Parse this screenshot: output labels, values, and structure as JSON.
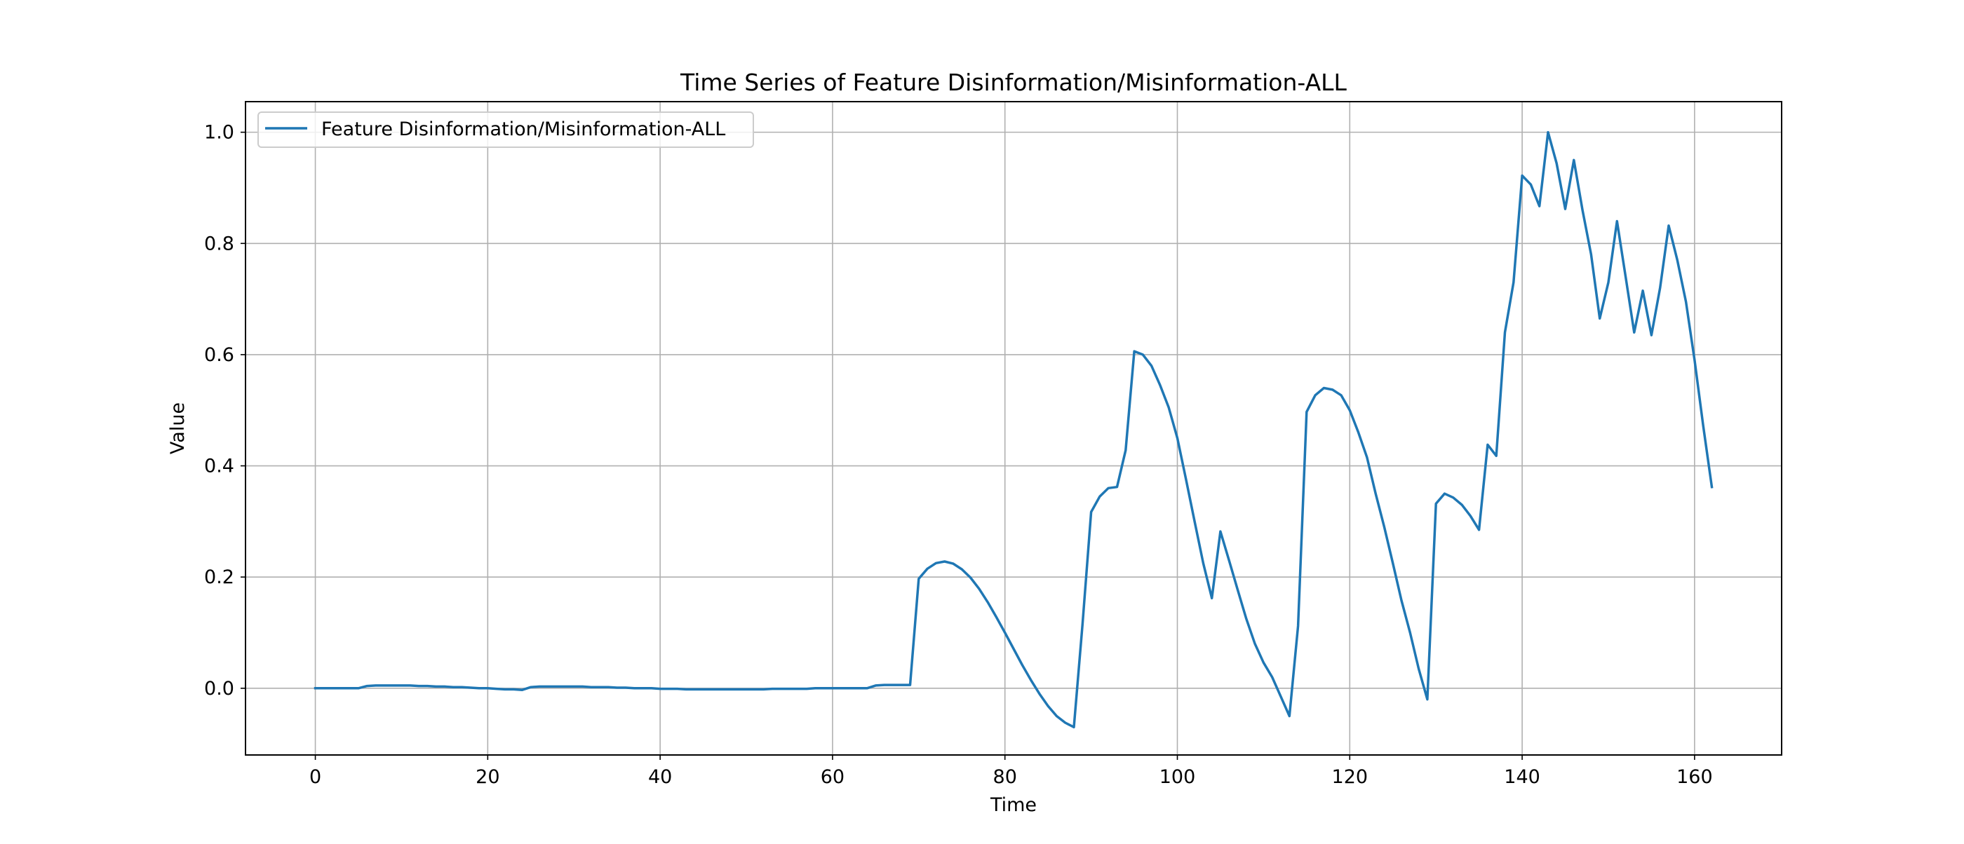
{
  "chart_data": {
    "type": "line",
    "title": "Time Series of Feature Disinformation/Misinformation-ALL",
    "xlabel": "Time",
    "ylabel": "Value",
    "xlim": [
      -8.1,
      170.1
    ],
    "ylim": [
      -0.12,
      1.055
    ],
    "x_ticks": [
      0,
      20,
      40,
      60,
      80,
      100,
      120,
      140,
      160
    ],
    "y_ticks": [
      0.0,
      0.2,
      0.4,
      0.6,
      0.8,
      1.0
    ],
    "x_tick_labels": [
      "0",
      "20",
      "40",
      "60",
      "80",
      "100",
      "120",
      "140",
      "160"
    ],
    "y_tick_labels": [
      "0.0",
      "0.2",
      "0.4",
      "0.6",
      "0.8",
      "1.0"
    ],
    "grid": true,
    "legend_position": "upper-left",
    "series": [
      {
        "name": "Feature Disinformation/Misinformation-ALL",
        "color": "#1f77b4",
        "x": [
          0,
          1,
          2,
          3,
          4,
          5,
          6,
          7,
          8,
          9,
          10,
          11,
          12,
          13,
          14,
          15,
          16,
          17,
          18,
          19,
          20,
          21,
          22,
          23,
          24,
          25,
          26,
          27,
          28,
          29,
          30,
          31,
          32,
          33,
          34,
          35,
          36,
          37,
          38,
          39,
          40,
          41,
          42,
          43,
          44,
          45,
          46,
          47,
          48,
          49,
          50,
          51,
          52,
          53,
          54,
          55,
          56,
          57,
          58,
          59,
          60,
          61,
          62,
          63,
          64,
          65,
          66,
          67,
          68,
          69,
          70,
          71,
          72,
          73,
          74,
          75,
          76,
          77,
          78,
          79,
          80,
          81,
          82,
          83,
          84,
          85,
          86,
          87,
          88,
          89,
          90,
          91,
          92,
          93,
          94,
          95,
          96,
          97,
          98,
          99,
          100,
          101,
          102,
          103,
          104,
          105,
          106,
          107,
          108,
          109,
          110,
          111,
          112,
          113,
          114,
          115,
          116,
          117,
          118,
          119,
          120,
          121,
          122,
          123,
          124,
          125,
          126,
          127,
          128,
          129,
          130,
          131,
          132,
          133,
          134,
          135,
          136,
          137,
          138,
          139,
          140,
          141,
          142,
          143,
          144,
          145,
          146,
          147,
          148,
          149,
          150,
          151,
          152,
          153,
          154,
          155,
          156,
          157,
          158,
          159,
          160,
          161,
          162
        ],
        "values": [
          0.0,
          0.0,
          0.0,
          0.0,
          0.0,
          0.0,
          0.004,
          0.005,
          0.005,
          0.005,
          0.005,
          0.005,
          0.004,
          0.004,
          0.003,
          0.003,
          0.002,
          0.002,
          0.001,
          0.0,
          0.0,
          -0.001,
          -0.002,
          -0.002,
          -0.003,
          0.002,
          0.003,
          0.003,
          0.003,
          0.003,
          0.003,
          0.003,
          0.002,
          0.002,
          0.002,
          0.001,
          0.001,
          0.0,
          0.0,
          0.0,
          -0.001,
          -0.001,
          -0.001,
          -0.002,
          -0.002,
          -0.002,
          -0.002,
          -0.002,
          -0.002,
          -0.002,
          -0.002,
          -0.002,
          -0.002,
          -0.001,
          -0.001,
          -0.001,
          -0.001,
          -0.001,
          0.0,
          0.0,
          0.0,
          0.0,
          0.0,
          0.0,
          0.0,
          0.005,
          0.006,
          0.006,
          0.006,
          0.006,
          0.197,
          0.215,
          0.225,
          0.228,
          0.224,
          0.214,
          0.199,
          0.179,
          0.155,
          0.128,
          0.1,
          0.071,
          0.042,
          0.015,
          -0.01,
          -0.032,
          -0.05,
          -0.062,
          -0.07,
          0.115,
          0.317,
          0.345,
          0.36,
          0.362,
          0.428,
          0.606,
          0.6,
          0.58,
          0.545,
          0.505,
          0.45,
          0.376,
          0.3,
          0.225,
          0.162,
          0.282,
          0.23,
          0.177,
          0.125,
          0.08,
          0.046,
          0.02,
          -0.015,
          -0.05,
          0.112,
          0.497,
          0.527,
          0.54,
          0.537,
          0.527,
          0.5,
          0.46,
          0.415,
          0.35,
          0.29,
          0.225,
          0.158,
          0.1,
          0.035,
          -0.02,
          0.332,
          0.35,
          0.343,
          0.33,
          0.31,
          0.285,
          0.438,
          0.418,
          0.64,
          0.73,
          0.922,
          0.906,
          0.867,
          1.0,
          0.944,
          0.862,
          0.95,
          0.86,
          0.78,
          0.665,
          0.73,
          0.84,
          0.74,
          0.64,
          0.715,
          0.635,
          0.72,
          0.832,
          0.77,
          0.695,
          0.59,
          0.472,
          0.362
        ]
      }
    ]
  }
}
